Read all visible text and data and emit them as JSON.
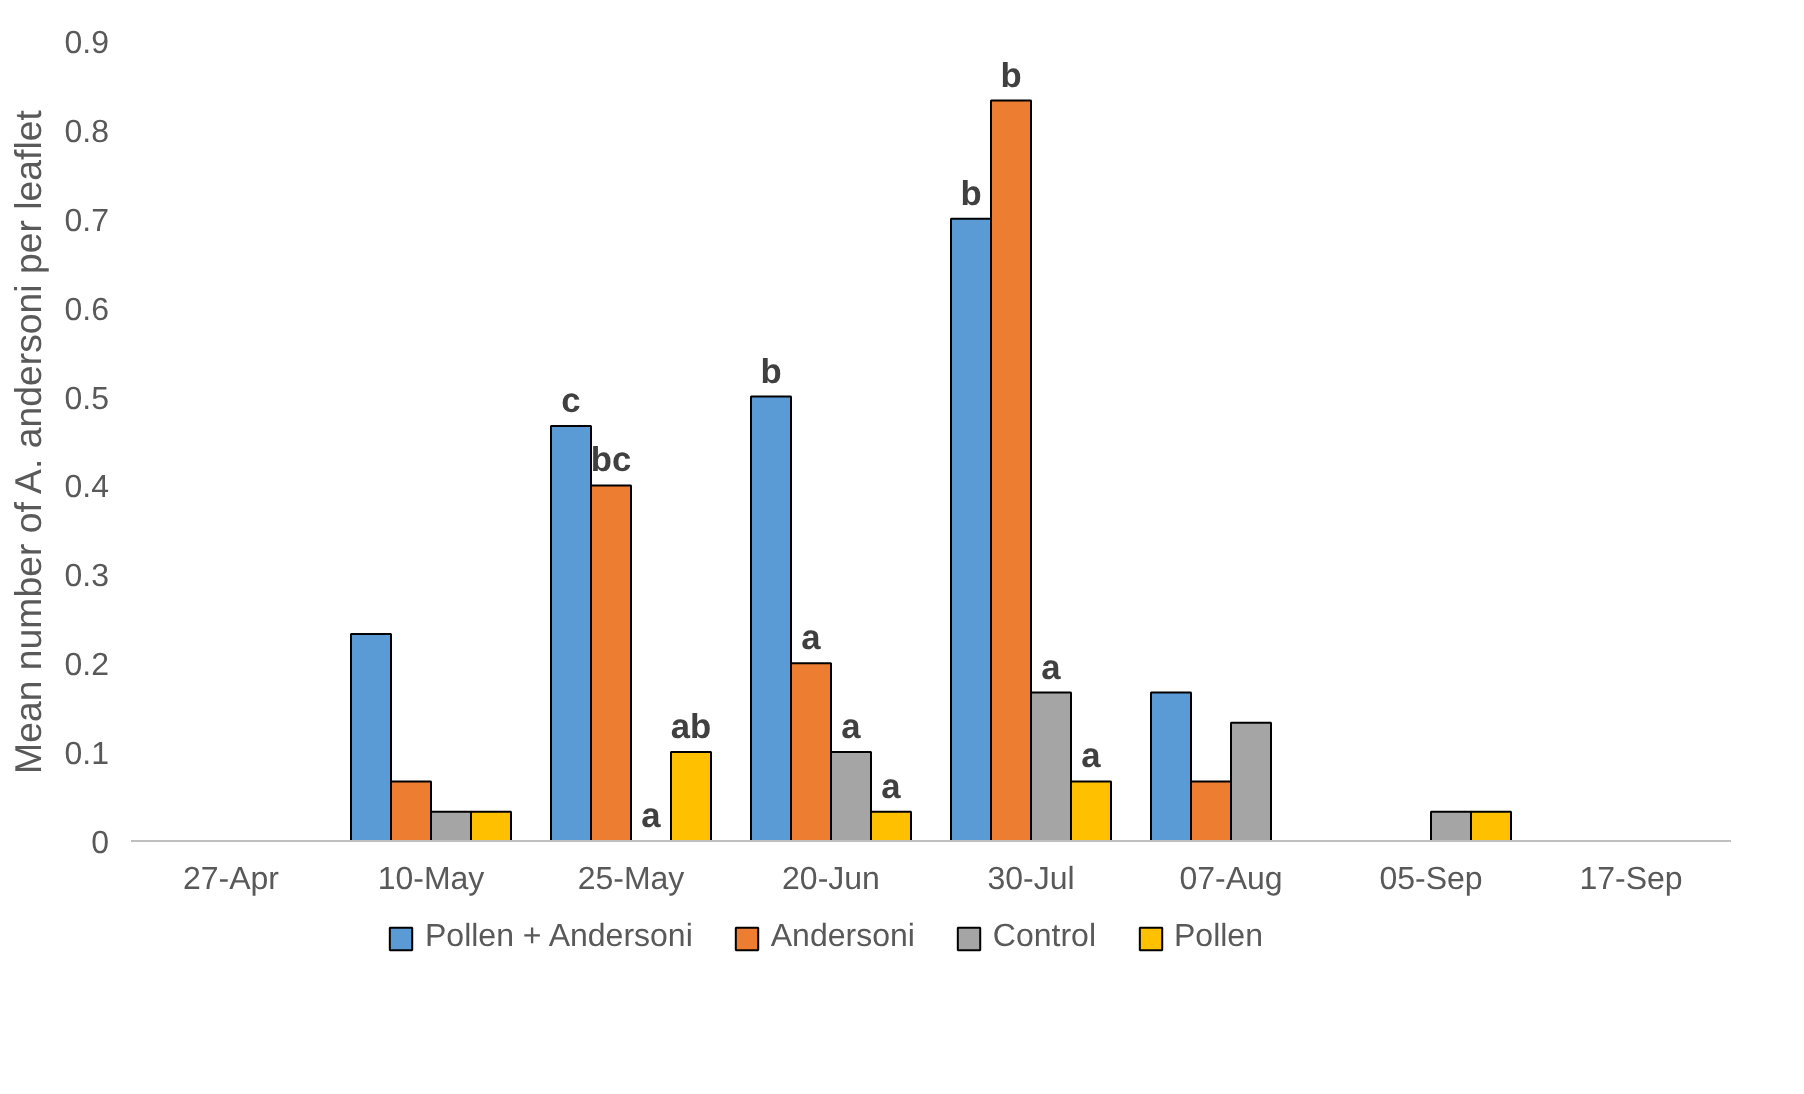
{
  "chart_data": {
    "type": "bar",
    "ylabel": "Mean number of A. andersoni per leaflet",
    "categories": [
      "27-Apr",
      "10-May",
      "25-May",
      "20-Jun",
      "30-Jul",
      "07-Aug",
      "05-Sep",
      "17-Sep"
    ],
    "series": [
      {
        "name": "Pollen + Andersoni",
        "color": "#5b9bd5",
        "values": [
          0,
          0.233,
          0.467,
          0.5,
          0.7,
          0.167,
          0,
          0
        ],
        "value_labels": [
          null,
          null,
          "c",
          "b",
          "b",
          null,
          null,
          null
        ]
      },
      {
        "name": "Andersoni",
        "color": "#ed7d31",
        "values": [
          0,
          0.067,
          0.4,
          0.2,
          0.833,
          0.067,
          0,
          0
        ],
        "value_labels": [
          null,
          null,
          "bc",
          "a",
          "b",
          null,
          null,
          null
        ]
      },
      {
        "name": "Control",
        "color": "#a5a5a5",
        "values": [
          0,
          0.033,
          0,
          0.1,
          0.167,
          0.133,
          0.033,
          0
        ],
        "value_labels": [
          null,
          null,
          "a",
          "a",
          "a",
          null,
          null,
          null
        ]
      },
      {
        "name": "Pollen",
        "color": "#ffc000",
        "values": [
          0,
          0.033,
          0.1,
          0.033,
          0.067,
          0,
          0.033,
          0
        ],
        "value_labels": [
          null,
          null,
          "ab",
          "a",
          "a",
          null,
          null,
          null
        ]
      }
    ],
    "ylim": [
      0,
      0.9
    ],
    "yticks": [
      0,
      0.1,
      0.2,
      0.3,
      0.4,
      0.5,
      0.6,
      0.7,
      0.8,
      0.9
    ],
    "grid": false,
    "legend": "bottom"
  }
}
